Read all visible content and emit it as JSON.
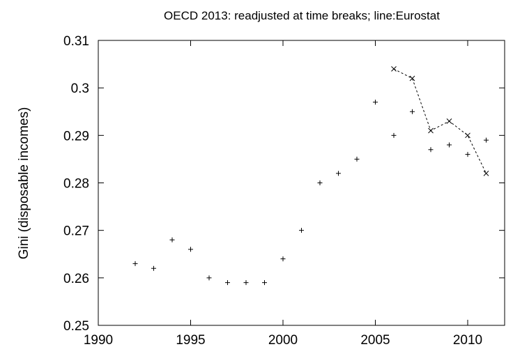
{
  "chart_data": {
    "type": "scatter",
    "title": "OECD 2013: readjusted at time breaks; line:Eurostat",
    "xlabel": "",
    "ylabel": "Gini (disposable incomes)",
    "xlim": [
      1990,
      2012
    ],
    "ylim": [
      0.25,
      0.31
    ],
    "grid": false,
    "x_ticks": [
      "1990",
      "1995",
      "2000",
      "2005",
      "2010"
    ],
    "y_ticks": [
      "0.25",
      "0.26",
      "0.27",
      "0.28",
      "0.29",
      "0.3",
      "0.31"
    ],
    "series": [
      {
        "marker": "plus",
        "line": "none",
        "x": [
          1992,
          1993,
          1994,
          1995,
          1996,
          1997,
          1998,
          1999,
          2000,
          2001,
          2002,
          2003,
          2004,
          2005,
          2006,
          2007,
          2008,
          2009,
          2010,
          2011
        ],
        "y": [
          0.263,
          0.262,
          0.268,
          0.266,
          0.26,
          0.259,
          0.259,
          0.259,
          0.264,
          0.27,
          0.28,
          0.282,
          0.285,
          0.297,
          0.29,
          0.295,
          0.287,
          0.288,
          0.286,
          0.289
        ]
      },
      {
        "marker": "cross",
        "line": "dashed",
        "x": [
          2006,
          2007,
          2008,
          2009,
          2010,
          2011
        ],
        "y": [
          0.304,
          0.302,
          0.291,
          0.293,
          0.29,
          0.282
        ]
      }
    ]
  }
}
